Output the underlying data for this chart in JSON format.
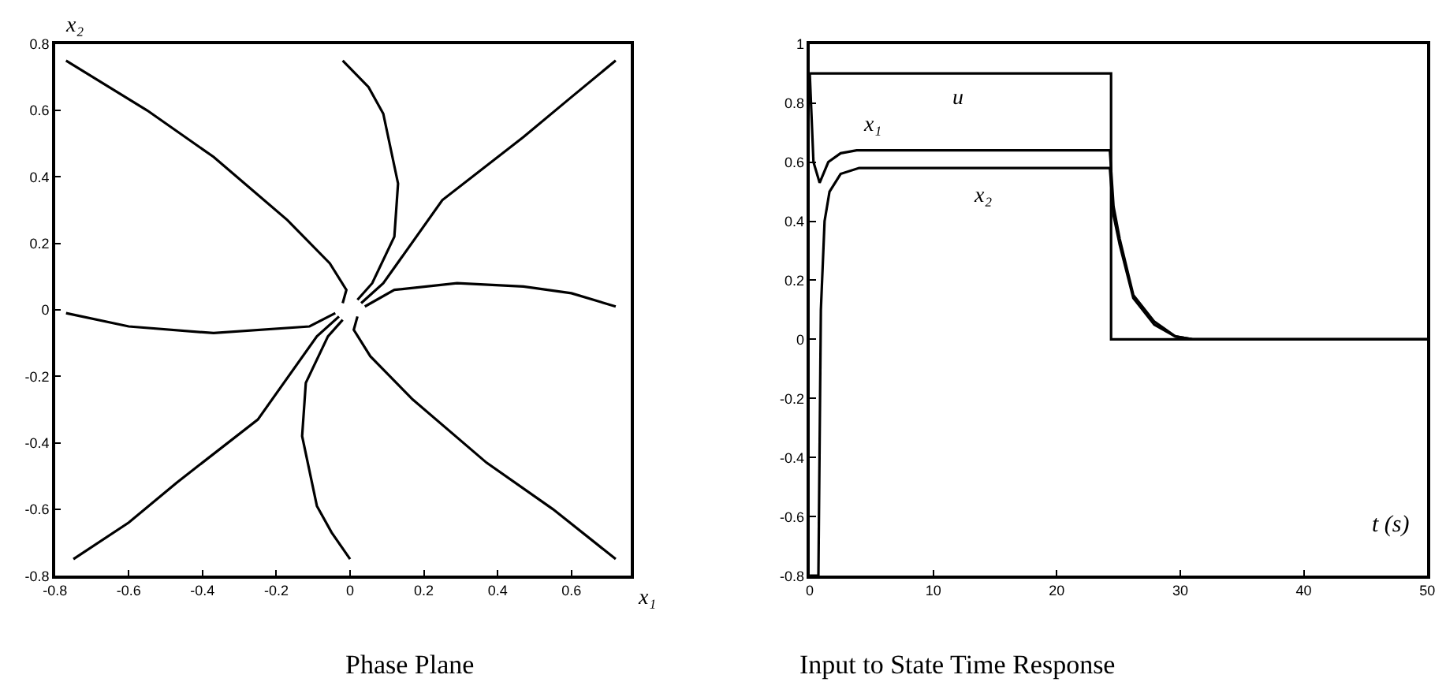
{
  "chart_data": [
    {
      "type": "line",
      "title": "Phase Plane",
      "xlabel": "x₁",
      "ylabel": "x₂",
      "xlim": [
        -0.8,
        0.76
      ],
      "ylim": [
        -0.8,
        0.8
      ],
      "xticks": [
        -0.8,
        -0.6,
        -0.4,
        -0.2,
        0,
        0.2,
        0.4,
        0.6
      ],
      "yticks": [
        -0.8,
        -0.6,
        -0.4,
        -0.2,
        0,
        0.2,
        0.4,
        0.6,
        0.8
      ],
      "grid": false,
      "legend": false,
      "marker": "none",
      "line_style": "solid",
      "series": [
        {
          "color": "#000000",
          "x": [
            -0.77,
            -0.55,
            -0.37,
            -0.17,
            -0.055,
            -0.01,
            -0.02
          ],
          "values": [
            0.75,
            0.6,
            0.46,
            0.27,
            0.14,
            0.06,
            0.02
          ]
        },
        {
          "color": "#000000",
          "x": [
            -0.02,
            0.05,
            0.09,
            0.13,
            0.12,
            0.06,
            0.02
          ],
          "values": [
            0.75,
            0.67,
            0.59,
            0.38,
            0.22,
            0.08,
            0.03
          ]
        },
        {
          "color": "#000000",
          "x": [
            0.72,
            0.6,
            0.47,
            0.25,
            0.09,
            0.03
          ],
          "values": [
            0.75,
            0.64,
            0.52,
            0.33,
            0.08,
            0.02
          ]
        },
        {
          "color": "#000000",
          "x": [
            0.72,
            0.6,
            0.47,
            0.29,
            0.12,
            0.04
          ],
          "values": [
            0.01,
            0.05,
            0.07,
            0.08,
            0.06,
            0.01
          ]
        },
        {
          "color": "#000000",
          "x": [
            -0.77,
            -0.6,
            -0.37,
            -0.11,
            -0.04
          ],
          "values": [
            -0.01,
            -0.05,
            -0.07,
            -0.05,
            -0.01
          ]
        },
        {
          "color": "#000000",
          "x": [
            -0.75,
            -0.6,
            -0.47,
            -0.25,
            -0.09,
            -0.03
          ],
          "values": [
            -0.75,
            -0.64,
            -0.52,
            -0.33,
            -0.08,
            -0.02
          ]
        },
        {
          "color": "#000000",
          "x": [
            0,
            -0.05,
            -0.09,
            -0.13,
            -0.12,
            -0.06,
            -0.02
          ],
          "values": [
            -0.75,
            -0.67,
            -0.59,
            -0.38,
            -0.22,
            -0.08,
            -0.03
          ]
        },
        {
          "color": "#000000",
          "x": [
            0.72,
            0.55,
            0.37,
            0.17,
            0.055,
            0.01,
            0.02
          ],
          "values": [
            -0.75,
            -0.6,
            -0.46,
            -0.27,
            -0.14,
            -0.06,
            -0.02
          ]
        }
      ]
    },
    {
      "type": "line",
      "title": "Input to State Time Response",
      "xlabel": "t (s)",
      "xlim": [
        0,
        50
      ],
      "ylim": [
        -0.8,
        1
      ],
      "xticks": [
        0,
        10,
        20,
        30,
        40,
        50
      ],
      "yticks": [
        -0.8,
        -0.6,
        -0.4,
        -0.2,
        0,
        0.2,
        0.4,
        0.6,
        0.8,
        1
      ],
      "grid": false,
      "legend": false,
      "marker": "none",
      "line_style": "solid",
      "series": [
        {
          "name": "u",
          "color": "#000000",
          "x": [
            0,
            24.4,
            24.4,
            50
          ],
          "values": [
            0.9,
            0.9,
            0,
            0
          ]
        },
        {
          "name": "x₁",
          "color": "#000000",
          "x": [
            0,
            0.3,
            0.8,
            1.5,
            2.5,
            3.8,
            24.3,
            24.6,
            25.1,
            26.2,
            27.9,
            29.6,
            31,
            50
          ],
          "values": [
            0.9,
            0.6,
            0.53,
            0.6,
            0.63,
            0.64,
            0.64,
            0.45,
            0.34,
            0.15,
            0.06,
            0.01,
            0,
            0
          ]
        },
        {
          "name": "x₂",
          "color": "#000000",
          "x": [
            0,
            0.7,
            0.9,
            1.2,
            1.6,
            2.5,
            4,
            24.3,
            24.6,
            25.1,
            26.2,
            27.9,
            29.6,
            31,
            50
          ],
          "values": [
            -0.8,
            -0.8,
            0.1,
            0.4,
            0.5,
            0.56,
            0.58,
            0.58,
            0.42,
            0.32,
            0.14,
            0.05,
            0.01,
            0,
            0
          ]
        }
      ]
    }
  ]
}
